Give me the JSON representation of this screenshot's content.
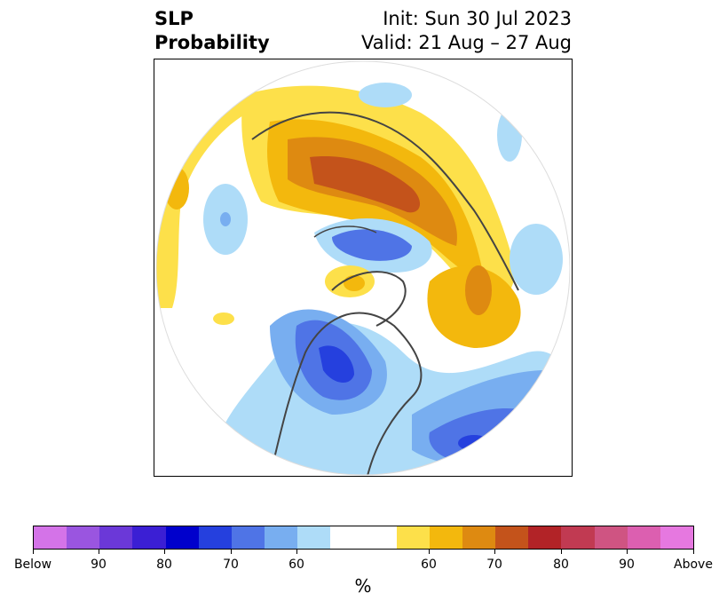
{
  "title": {
    "left_line1": "SLP",
    "left_line2": "Probability",
    "right_line1": "Init: Sun 30 Jul 2023",
    "right_line2": "Valid: 21 Aug – 27 Aug"
  },
  "colorbar": {
    "below_colors": [
      "#d473e8",
      "#9a55e0",
      "#6b38d8",
      "#3b1fd4",
      "#0000cc",
      "#2540de",
      "#4f74e6",
      "#78aef0",
      "#aedcf8"
    ],
    "neutral_color": "#ffffff",
    "above_colors": [
      "#fde04a",
      "#f3b80d",
      "#de8a11",
      "#c4531b",
      "#b22327",
      "#c13a52",
      "#cf5482",
      "#dc5fb0",
      "#e678e0"
    ],
    "tick_labels": [
      "Below",
      "90",
      "80",
      "70",
      "60",
      "60",
      "70",
      "80",
      "90",
      "Above"
    ],
    "unit": "%"
  }
}
